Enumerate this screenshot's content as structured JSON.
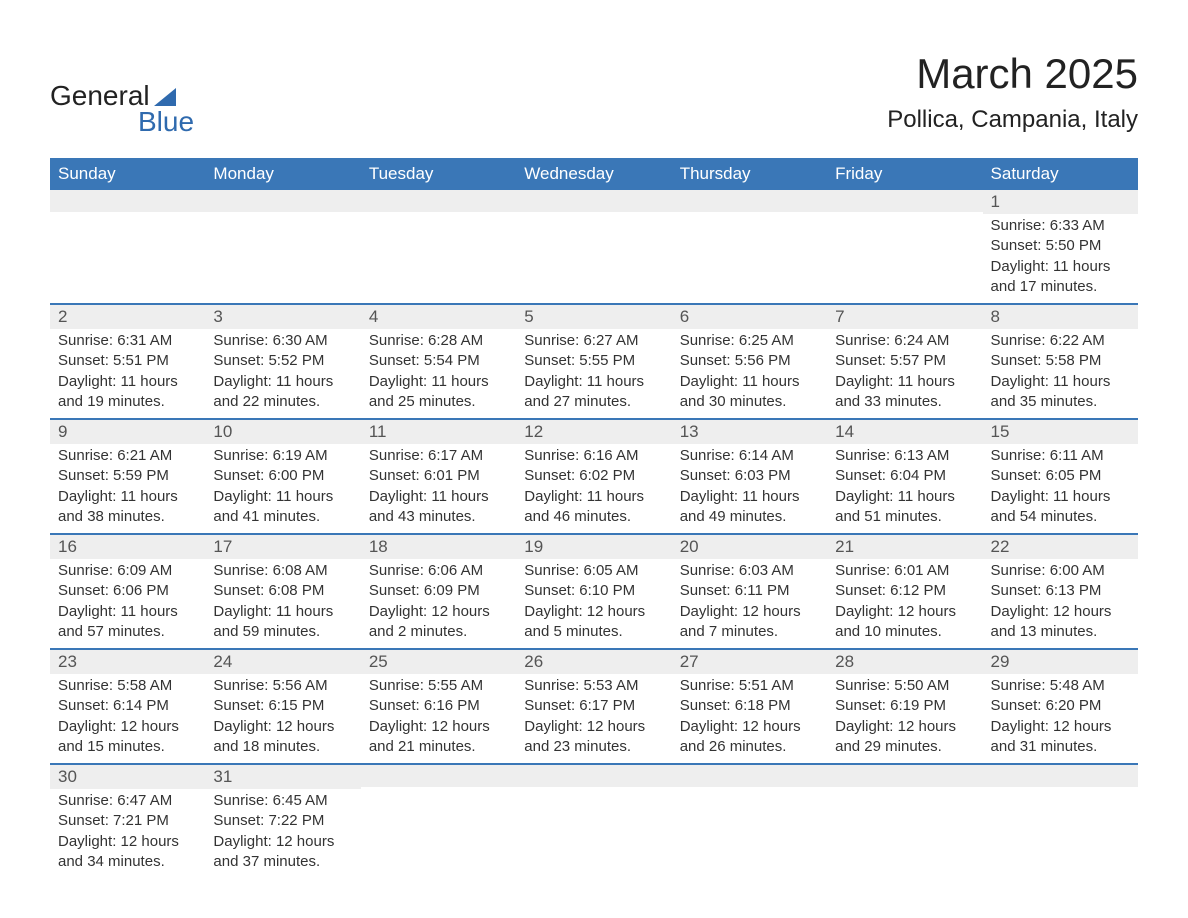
{
  "logo": {
    "word1": "General",
    "word2": "Blue"
  },
  "title": "March 2025",
  "location": "Pollica, Campania, Italy",
  "day_names": [
    "Sunday",
    "Monday",
    "Tuesday",
    "Wednesday",
    "Thursday",
    "Friday",
    "Saturday"
  ],
  "colors": {
    "header_bg": "#3a77b7",
    "header_text": "#ffffff",
    "row_border": "#3a77b7",
    "daynum_bg": "#eeeeee",
    "daynum_text": "#555555",
    "body_text": "#333333",
    "logo_accent": "#2f6aae",
    "page_bg": "#ffffff"
  },
  "typography": {
    "title_fontsize": 42,
    "location_fontsize": 24,
    "header_fontsize": 17,
    "daynum_fontsize": 17,
    "body_fontsize": 15
  },
  "weeks": [
    [
      null,
      null,
      null,
      null,
      null,
      null,
      {
        "n": "1",
        "sunrise": "Sunrise: 6:33 AM",
        "sunset": "Sunset: 5:50 PM",
        "dl1": "Daylight: 11 hours",
        "dl2": "and 17 minutes."
      }
    ],
    [
      {
        "n": "2",
        "sunrise": "Sunrise: 6:31 AM",
        "sunset": "Sunset: 5:51 PM",
        "dl1": "Daylight: 11 hours",
        "dl2": "and 19 minutes."
      },
      {
        "n": "3",
        "sunrise": "Sunrise: 6:30 AM",
        "sunset": "Sunset: 5:52 PM",
        "dl1": "Daylight: 11 hours",
        "dl2": "and 22 minutes."
      },
      {
        "n": "4",
        "sunrise": "Sunrise: 6:28 AM",
        "sunset": "Sunset: 5:54 PM",
        "dl1": "Daylight: 11 hours",
        "dl2": "and 25 minutes."
      },
      {
        "n": "5",
        "sunrise": "Sunrise: 6:27 AM",
        "sunset": "Sunset: 5:55 PM",
        "dl1": "Daylight: 11 hours",
        "dl2": "and 27 minutes."
      },
      {
        "n": "6",
        "sunrise": "Sunrise: 6:25 AM",
        "sunset": "Sunset: 5:56 PM",
        "dl1": "Daylight: 11 hours",
        "dl2": "and 30 minutes."
      },
      {
        "n": "7",
        "sunrise": "Sunrise: 6:24 AM",
        "sunset": "Sunset: 5:57 PM",
        "dl1": "Daylight: 11 hours",
        "dl2": "and 33 minutes."
      },
      {
        "n": "8",
        "sunrise": "Sunrise: 6:22 AM",
        "sunset": "Sunset: 5:58 PM",
        "dl1": "Daylight: 11 hours",
        "dl2": "and 35 minutes."
      }
    ],
    [
      {
        "n": "9",
        "sunrise": "Sunrise: 6:21 AM",
        "sunset": "Sunset: 5:59 PM",
        "dl1": "Daylight: 11 hours",
        "dl2": "and 38 minutes."
      },
      {
        "n": "10",
        "sunrise": "Sunrise: 6:19 AM",
        "sunset": "Sunset: 6:00 PM",
        "dl1": "Daylight: 11 hours",
        "dl2": "and 41 minutes."
      },
      {
        "n": "11",
        "sunrise": "Sunrise: 6:17 AM",
        "sunset": "Sunset: 6:01 PM",
        "dl1": "Daylight: 11 hours",
        "dl2": "and 43 minutes."
      },
      {
        "n": "12",
        "sunrise": "Sunrise: 6:16 AM",
        "sunset": "Sunset: 6:02 PM",
        "dl1": "Daylight: 11 hours",
        "dl2": "and 46 minutes."
      },
      {
        "n": "13",
        "sunrise": "Sunrise: 6:14 AM",
        "sunset": "Sunset: 6:03 PM",
        "dl1": "Daylight: 11 hours",
        "dl2": "and 49 minutes."
      },
      {
        "n": "14",
        "sunrise": "Sunrise: 6:13 AM",
        "sunset": "Sunset: 6:04 PM",
        "dl1": "Daylight: 11 hours",
        "dl2": "and 51 minutes."
      },
      {
        "n": "15",
        "sunrise": "Sunrise: 6:11 AM",
        "sunset": "Sunset: 6:05 PM",
        "dl1": "Daylight: 11 hours",
        "dl2": "and 54 minutes."
      }
    ],
    [
      {
        "n": "16",
        "sunrise": "Sunrise: 6:09 AM",
        "sunset": "Sunset: 6:06 PM",
        "dl1": "Daylight: 11 hours",
        "dl2": "and 57 minutes."
      },
      {
        "n": "17",
        "sunrise": "Sunrise: 6:08 AM",
        "sunset": "Sunset: 6:08 PM",
        "dl1": "Daylight: 11 hours",
        "dl2": "and 59 minutes."
      },
      {
        "n": "18",
        "sunrise": "Sunrise: 6:06 AM",
        "sunset": "Sunset: 6:09 PM",
        "dl1": "Daylight: 12 hours",
        "dl2": "and 2 minutes."
      },
      {
        "n": "19",
        "sunrise": "Sunrise: 6:05 AM",
        "sunset": "Sunset: 6:10 PM",
        "dl1": "Daylight: 12 hours",
        "dl2": "and 5 minutes."
      },
      {
        "n": "20",
        "sunrise": "Sunrise: 6:03 AM",
        "sunset": "Sunset: 6:11 PM",
        "dl1": "Daylight: 12 hours",
        "dl2": "and 7 minutes."
      },
      {
        "n": "21",
        "sunrise": "Sunrise: 6:01 AM",
        "sunset": "Sunset: 6:12 PM",
        "dl1": "Daylight: 12 hours",
        "dl2": "and 10 minutes."
      },
      {
        "n": "22",
        "sunrise": "Sunrise: 6:00 AM",
        "sunset": "Sunset: 6:13 PM",
        "dl1": "Daylight: 12 hours",
        "dl2": "and 13 minutes."
      }
    ],
    [
      {
        "n": "23",
        "sunrise": "Sunrise: 5:58 AM",
        "sunset": "Sunset: 6:14 PM",
        "dl1": "Daylight: 12 hours",
        "dl2": "and 15 minutes."
      },
      {
        "n": "24",
        "sunrise": "Sunrise: 5:56 AM",
        "sunset": "Sunset: 6:15 PM",
        "dl1": "Daylight: 12 hours",
        "dl2": "and 18 minutes."
      },
      {
        "n": "25",
        "sunrise": "Sunrise: 5:55 AM",
        "sunset": "Sunset: 6:16 PM",
        "dl1": "Daylight: 12 hours",
        "dl2": "and 21 minutes."
      },
      {
        "n": "26",
        "sunrise": "Sunrise: 5:53 AM",
        "sunset": "Sunset: 6:17 PM",
        "dl1": "Daylight: 12 hours",
        "dl2": "and 23 minutes."
      },
      {
        "n": "27",
        "sunrise": "Sunrise: 5:51 AM",
        "sunset": "Sunset: 6:18 PM",
        "dl1": "Daylight: 12 hours",
        "dl2": "and 26 minutes."
      },
      {
        "n": "28",
        "sunrise": "Sunrise: 5:50 AM",
        "sunset": "Sunset: 6:19 PM",
        "dl1": "Daylight: 12 hours",
        "dl2": "and 29 minutes."
      },
      {
        "n": "29",
        "sunrise": "Sunrise: 5:48 AM",
        "sunset": "Sunset: 6:20 PM",
        "dl1": "Daylight: 12 hours",
        "dl2": "and 31 minutes."
      }
    ],
    [
      {
        "n": "30",
        "sunrise": "Sunrise: 6:47 AM",
        "sunset": "Sunset: 7:21 PM",
        "dl1": "Daylight: 12 hours",
        "dl2": "and 34 minutes."
      },
      {
        "n": "31",
        "sunrise": "Sunrise: 6:45 AM",
        "sunset": "Sunset: 7:22 PM",
        "dl1": "Daylight: 12 hours",
        "dl2": "and 37 minutes."
      },
      null,
      null,
      null,
      null,
      null
    ]
  ]
}
